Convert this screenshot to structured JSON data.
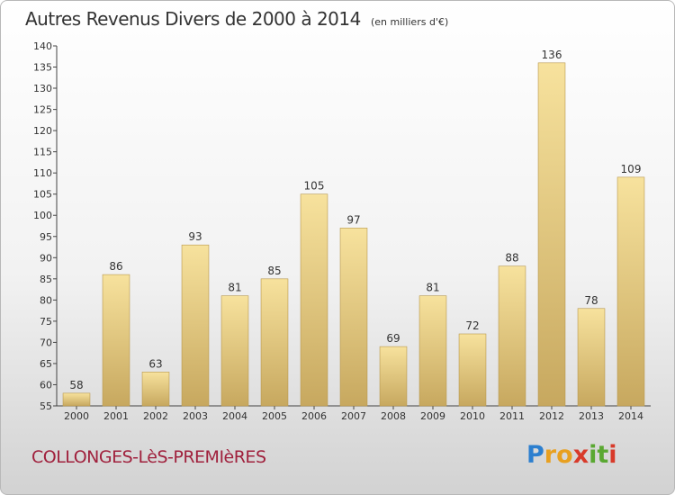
{
  "chart_data": {
    "type": "bar",
    "title": "Autres Revenus Divers de 2000 à 2014",
    "subtitle": "(en milliers d'€)",
    "categories": [
      "2000",
      "2001",
      "2002",
      "2003",
      "2004",
      "2005",
      "2006",
      "2007",
      "2008",
      "2009",
      "2010",
      "2011",
      "2012",
      "2013",
      "2014"
    ],
    "values": [
      58,
      86,
      63,
      93,
      81,
      85,
      105,
      97,
      69,
      81,
      72,
      88,
      136,
      78,
      109
    ],
    "ylim": [
      55,
      140
    ],
    "yticks": [
      55,
      60,
      65,
      70,
      75,
      80,
      85,
      90,
      95,
      100,
      105,
      110,
      115,
      120,
      125,
      130,
      135,
      140
    ],
    "grid": false,
    "xlabel": "",
    "ylabel": ""
  },
  "footer": {
    "commune": "COLLONGES-LèS-PREMIèRES"
  },
  "logo": {
    "text": "Proxiti",
    "letters": [
      {
        "ch": "P",
        "color": "#2c7fcf"
      },
      {
        "ch": "r",
        "color": "#e8a020"
      },
      {
        "ch": "o",
        "color": "#e8a020"
      },
      {
        "ch": "x",
        "color": "#d83a2a"
      },
      {
        "ch": "i",
        "color": "#5aa832"
      },
      {
        "ch": "t",
        "color": "#5aa832"
      },
      {
        "ch": "i",
        "color": "#d83a2a"
      }
    ]
  },
  "colors": {
    "bar_top": "#f7e29d",
    "bar_bottom": "#c7a85f",
    "bar_edge": "#b8984e",
    "axis": "#444444",
    "commune": "#a0213d"
  }
}
